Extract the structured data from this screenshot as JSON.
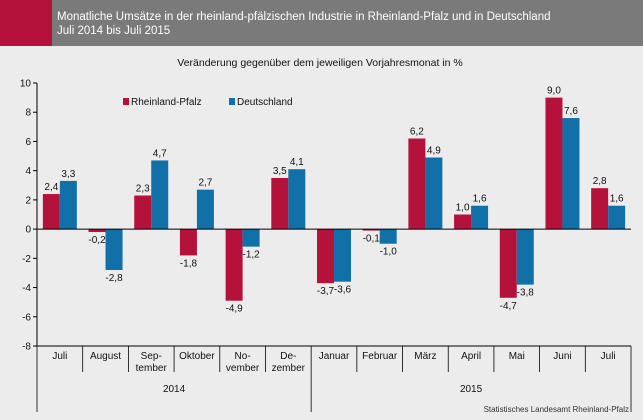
{
  "title": {
    "line1": "Monatliche Umsätze in der rheinland-pfälzischen Industrie in Rheinland-Pfalz und in Deutschland",
    "line2": "Juli 2014 bis Juli 2015"
  },
  "source": "Statistisches Landesamt Rheinland-Pfalz",
  "colors": {
    "header": "#7a7a7a",
    "accent": "#b5123b",
    "rlp": "#b5123b",
    "de": "#1170a8",
    "background": "#ececec"
  },
  "chart_data": {
    "type": "bar",
    "subtitle": "Veränderung gegenüber dem jeweiligen Vorjahresmonat in %",
    "categories": [
      [
        "Juli"
      ],
      [
        "August"
      ],
      [
        "Sep-",
        "tember"
      ],
      [
        "Oktober"
      ],
      [
        "No-",
        "vember"
      ],
      [
        "De-",
        "zember"
      ],
      [
        "Januar"
      ],
      [
        "Februar"
      ],
      [
        "März"
      ],
      [
        "April"
      ],
      [
        "Mai"
      ],
      [
        "Juni"
      ],
      [
        "Juli"
      ]
    ],
    "year_groups": [
      {
        "label": "2014",
        "start": 0,
        "end": 5
      },
      {
        "label": "2015",
        "start": 6,
        "end": 12
      }
    ],
    "series": [
      {
        "name": "Rheinland-Pfalz",
        "color": "#b5123b",
        "values": [
          2.4,
          -0.2,
          2.3,
          -1.8,
          -4.9,
          3.5,
          -3.7,
          -0.1,
          6.2,
          1.0,
          -4.7,
          9.0,
          2.8
        ],
        "labels": [
          "2,4",
          "-0,2",
          "2,3",
          "-1,8",
          "-4,9",
          "3,5",
          "-3,7",
          "-0,1",
          "6,2",
          "1,0",
          "-4,7",
          "9,0",
          "2,8"
        ]
      },
      {
        "name": "Deutschland",
        "color": "#1170a8",
        "values": [
          3.3,
          -2.8,
          4.7,
          2.7,
          -1.2,
          4.1,
          -3.6,
          -1.0,
          4.9,
          1.6,
          -3.8,
          7.6,
          1.6
        ],
        "labels": [
          "3,3",
          "-2,8",
          "4,7",
          "2,7",
          "-1,2",
          "4,1",
          "-3,6",
          "-1,0",
          "4,9",
          "1,6",
          "-3,8",
          "7,6",
          "1,6"
        ]
      }
    ],
    "ylim": [
      -8,
      10
    ],
    "yticks": [
      "10",
      "8",
      "6",
      "4",
      "2",
      "0",
      "-2",
      "-4",
      "-6",
      "-8"
    ],
    "legend": "top-left",
    "grid": false
  }
}
